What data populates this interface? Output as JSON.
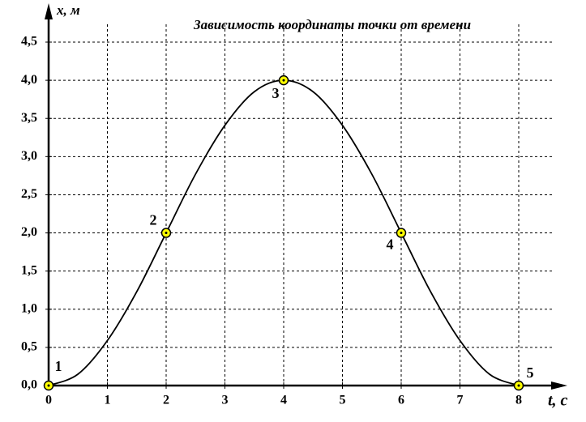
{
  "chart_data": {
    "type": "line",
    "title": "Зависимость координаты точки от времени",
    "x_label": "t, с",
    "y_label": "x, м",
    "series": [
      {
        "color": "#000000",
        "x": [
          0,
          0.5,
          1,
          1.5,
          2,
          2.5,
          3,
          3.5,
          4,
          4.5,
          5,
          5.5,
          6,
          6.5,
          7,
          7.5,
          8
        ],
        "values": [
          0,
          0.15,
          0.59,
          1.23,
          2,
          2.77,
          3.41,
          3.85,
          4,
          3.85,
          3.41,
          2.77,
          2,
          1.23,
          0.59,
          0.15,
          0
        ]
      }
    ],
    "markers": {
      "color": "#ffff00",
      "x": [
        0,
        2,
        4,
        6,
        8
      ],
      "values": [
        0,
        2,
        4,
        2,
        0
      ],
      "labels": [
        "1",
        "2",
        "3",
        "4",
        "5"
      ]
    },
    "xlim": [
      0,
      8
    ],
    "ylim": [
      0,
      4.5
    ],
    "xticks": [
      0,
      1,
      2,
      3,
      4,
      5,
      6,
      7,
      8
    ],
    "yticks": [
      {
        "value": 0,
        "label": "0,0"
      },
      {
        "value": 0.5,
        "label": "0,5"
      },
      {
        "value": 1,
        "label": "1,0"
      },
      {
        "value": 1.5,
        "label": "1,5"
      },
      {
        "value": 2,
        "label": "2,0"
      },
      {
        "value": 2.5,
        "label": "2,5"
      },
      {
        "value": 3,
        "label": "3,0"
      },
      {
        "value": 3.5,
        "label": "3,5"
      },
      {
        "value": 4,
        "label": "4,0"
      },
      {
        "value": 4.5,
        "label": "4,5"
      }
    ],
    "grid": true
  }
}
